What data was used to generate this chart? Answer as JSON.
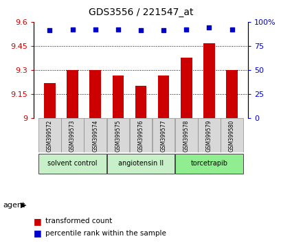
{
  "title": "GDS3556 / 221547_at",
  "samples": [
    "GSM399572",
    "GSM399573",
    "GSM399574",
    "GSM399575",
    "GSM399576",
    "GSM399577",
    "GSM399578",
    "GSM399579",
    "GSM399580"
  ],
  "transformed_counts": [
    9.22,
    9.3,
    9.3,
    9.265,
    9.2,
    9.265,
    9.375,
    9.465,
    9.3
  ],
  "percentile_ranks": [
    91,
    92,
    92,
    92,
    91,
    91,
    92,
    94,
    92
  ],
  "ylim_left": [
    9.0,
    9.6
  ],
  "ylim_right": [
    0,
    100
  ],
  "yticks_left": [
    9.0,
    9.15,
    9.3,
    9.45,
    9.6
  ],
  "yticks_right": [
    0,
    25,
    50,
    75,
    100
  ],
  "ytick_labels_left": [
    "9",
    "9.15",
    "9.3",
    "9.45",
    "9.6"
  ],
  "ytick_labels_right": [
    "0",
    "25",
    "50",
    "75",
    "100%"
  ],
  "bar_color": "#cc0000",
  "dot_color": "#0000cc",
  "grid_color": "#000000",
  "agent_groups": [
    {
      "label": "solvent control",
      "samples": [
        0,
        1,
        2
      ],
      "color": "#c8f0c8"
    },
    {
      "label": "angiotensin II",
      "samples": [
        3,
        4,
        5
      ],
      "color": "#c8f0c8"
    },
    {
      "label": "torcetrapib",
      "samples": [
        6,
        7,
        8
      ],
      "color": "#90ee90"
    }
  ],
  "legend_items": [
    {
      "color": "#cc0000",
      "label": "transformed count"
    },
    {
      "color": "#0000cc",
      "label": "percentile rank within the sample"
    }
  ],
  "tick_label_color_left": "#cc0000",
  "tick_label_color_right": "#0000cc",
  "xlabel_agent": "agent",
  "background_plot": "#ffffff",
  "background_label": "#d3d3d3",
  "bar_bottom": 9.0
}
